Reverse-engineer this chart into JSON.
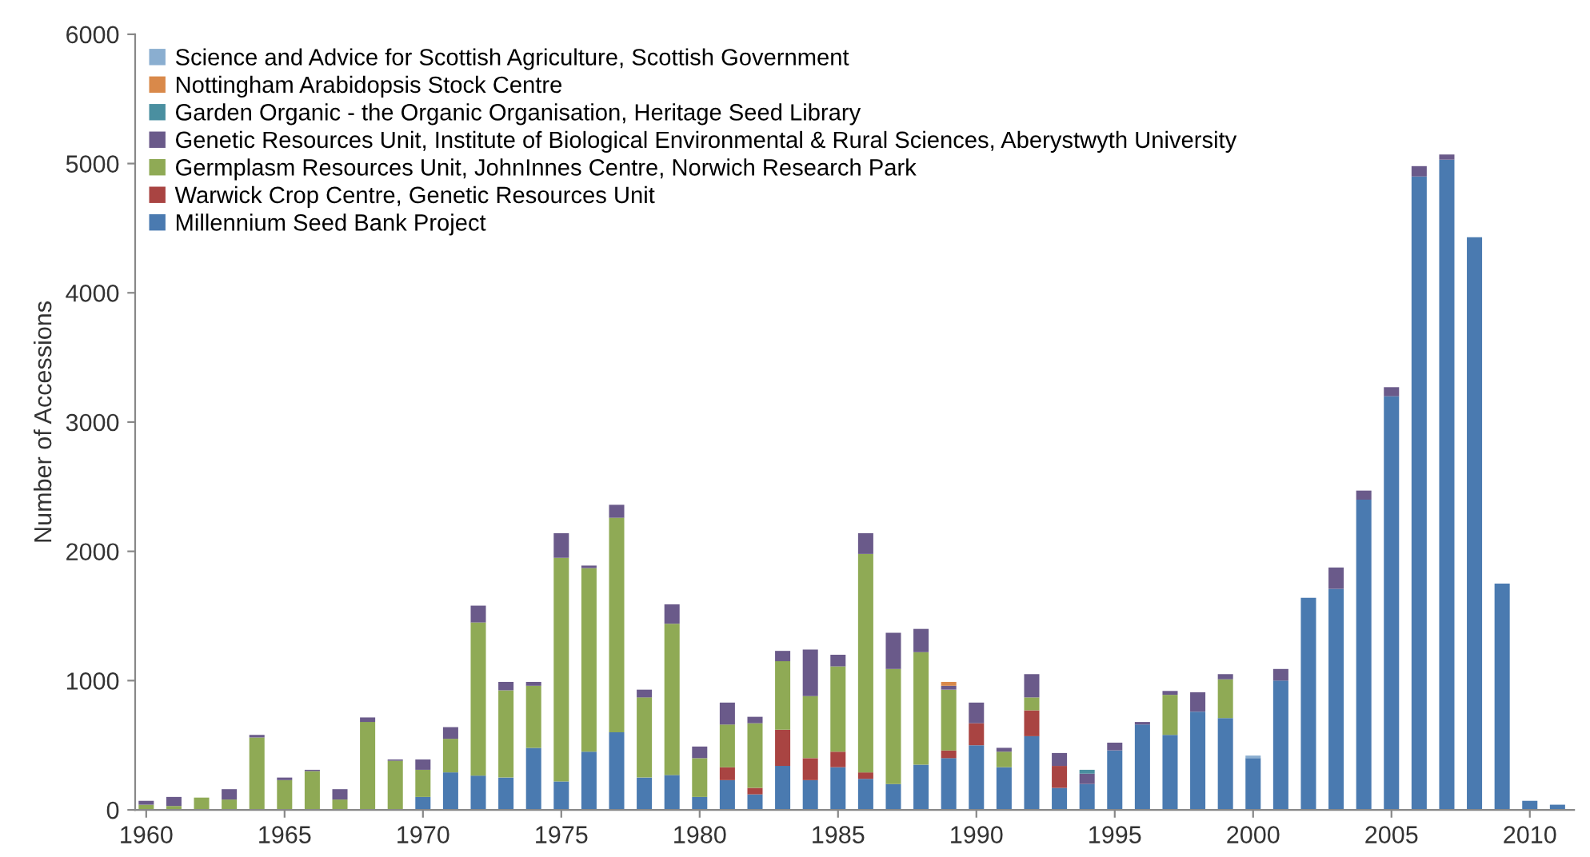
{
  "chart_data": {
    "type": "bar",
    "stacked": true,
    "ylabel": "Number of Accessions",
    "x": [
      1960,
      1961,
      1962,
      1963,
      1964,
      1965,
      1966,
      1967,
      1968,
      1969,
      1970,
      1971,
      1972,
      1973,
      1974,
      1975,
      1976,
      1977,
      1978,
      1979,
      1980,
      1981,
      1982,
      1983,
      1984,
      1985,
      1986,
      1987,
      1988,
      1989,
      1990,
      1991,
      1992,
      1993,
      1994,
      1995,
      1996,
      1997,
      1998,
      1999,
      2000,
      2001,
      2002,
      2003,
      2004,
      2005,
      2006,
      2007,
      2008,
      2009,
      2010,
      2011
    ],
    "series": [
      {
        "name": "Millennium Seed Bank Project",
        "color": "#4a7ab0",
        "values": [
          0,
          0,
          0,
          0,
          0,
          0,
          0,
          0,
          0,
          0,
          100,
          290,
          265,
          250,
          480,
          220,
          450,
          600,
          250,
          270,
          100,
          230,
          120,
          340,
          230,
          330,
          240,
          200,
          350,
          400,
          500,
          330,
          570,
          170,
          200,
          460,
          660,
          580,
          760,
          710,
          400,
          1000,
          1640,
          1710,
          2400,
          3200,
          4900,
          5030,
          4430,
          1750,
          70,
          40
        ]
      },
      {
        "name": "Warwick Crop Centre, Genetic Resources Unit",
        "color": "#a94442",
        "values": [
          0,
          0,
          0,
          0,
          0,
          0,
          0,
          0,
          0,
          0,
          0,
          0,
          0,
          0,
          0,
          0,
          0,
          0,
          0,
          0,
          0,
          100,
          50,
          280,
          170,
          120,
          50,
          0,
          0,
          60,
          170,
          0,
          200,
          170,
          0,
          0,
          0,
          0,
          0,
          0,
          0,
          0,
          0,
          0,
          0,
          0,
          0,
          0,
          0,
          0,
          0,
          0
        ]
      },
      {
        "name": "Germplasm Resources Unit, JohnInnes Centre, Norwich Research Park",
        "color": "#8faa55",
        "values": [
          40,
          30,
          95,
          80,
          560,
          230,
          300,
          80,
          680,
          380,
          210,
          260,
          1185,
          675,
          480,
          1730,
          1420,
          1660,
          620,
          1170,
          300,
          330,
          500,
          530,
          480,
          660,
          1690,
          890,
          870,
          470,
          0,
          120,
          100,
          0,
          0,
          0,
          0,
          310,
          0,
          300,
          0,
          0,
          0,
          0,
          0,
          0,
          0,
          0,
          0,
          0,
          0,
          0
        ]
      },
      {
        "name": "Genetic Resources Unit, Institute of Biological Environmental & Rural Sciences, Aberystwyth University",
        "color": "#6a5a8a",
        "values": [
          30,
          70,
          0,
          80,
          20,
          20,
          10,
          80,
          35,
          10,
          80,
          90,
          130,
          65,
          30,
          190,
          20,
          100,
          60,
          150,
          90,
          170,
          50,
          80,
          360,
          90,
          160,
          280,
          180,
          30,
          160,
          30,
          180,
          100,
          80,
          60,
          20,
          30,
          150,
          40,
          0,
          90,
          0,
          165,
          70,
          70,
          80,
          40,
          0,
          0,
          0,
          0
        ]
      },
      {
        "name": "Garden Organic - the Organic Organisation, Heritage Seed Library",
        "color": "#4a8fa0",
        "values": [
          0,
          0,
          0,
          0,
          0,
          0,
          0,
          0,
          0,
          0,
          0,
          0,
          0,
          0,
          0,
          0,
          0,
          0,
          0,
          0,
          0,
          0,
          0,
          0,
          0,
          0,
          0,
          0,
          0,
          0,
          0,
          0,
          0,
          0,
          30,
          0,
          0,
          0,
          0,
          0,
          0,
          0,
          0,
          0,
          0,
          0,
          0,
          0,
          0,
          0,
          0,
          0
        ]
      },
      {
        "name": "Nottingham Arabidopsis Stock Centre",
        "color": "#d9894a",
        "values": [
          0,
          0,
          0,
          0,
          0,
          0,
          0,
          0,
          0,
          0,
          0,
          0,
          0,
          0,
          0,
          0,
          0,
          0,
          0,
          0,
          0,
          0,
          0,
          0,
          0,
          0,
          0,
          0,
          0,
          30,
          0,
          0,
          0,
          0,
          0,
          0,
          0,
          0,
          0,
          0,
          0,
          0,
          0,
          0,
          0,
          0,
          0,
          0,
          0,
          0,
          0,
          0
        ]
      },
      {
        "name": "Science and Advice for Scottish Agriculture, Scottish Government",
        "color": "#8aaed0",
        "values": [
          0,
          0,
          0,
          0,
          0,
          0,
          0,
          0,
          0,
          0,
          0,
          0,
          0,
          0,
          0,
          0,
          0,
          0,
          0,
          0,
          0,
          0,
          0,
          0,
          0,
          0,
          0,
          0,
          0,
          0,
          0,
          0,
          0,
          0,
          0,
          0,
          0,
          0,
          0,
          0,
          20,
          0,
          0,
          0,
          0,
          0,
          0,
          0,
          0,
          0,
          0,
          0
        ]
      }
    ],
    "xlim": [
      1959.6,
      2011.6
    ],
    "xticks": [
      1960,
      1965,
      1970,
      1975,
      1980,
      1985,
      1990,
      1995,
      2000,
      2005,
      2010
    ],
    "ylim": [
      0,
      6000
    ],
    "yticks": [
      0,
      1000,
      2000,
      3000,
      4000,
      5000,
      6000
    ],
    "grid": false,
    "legend": "top left"
  }
}
